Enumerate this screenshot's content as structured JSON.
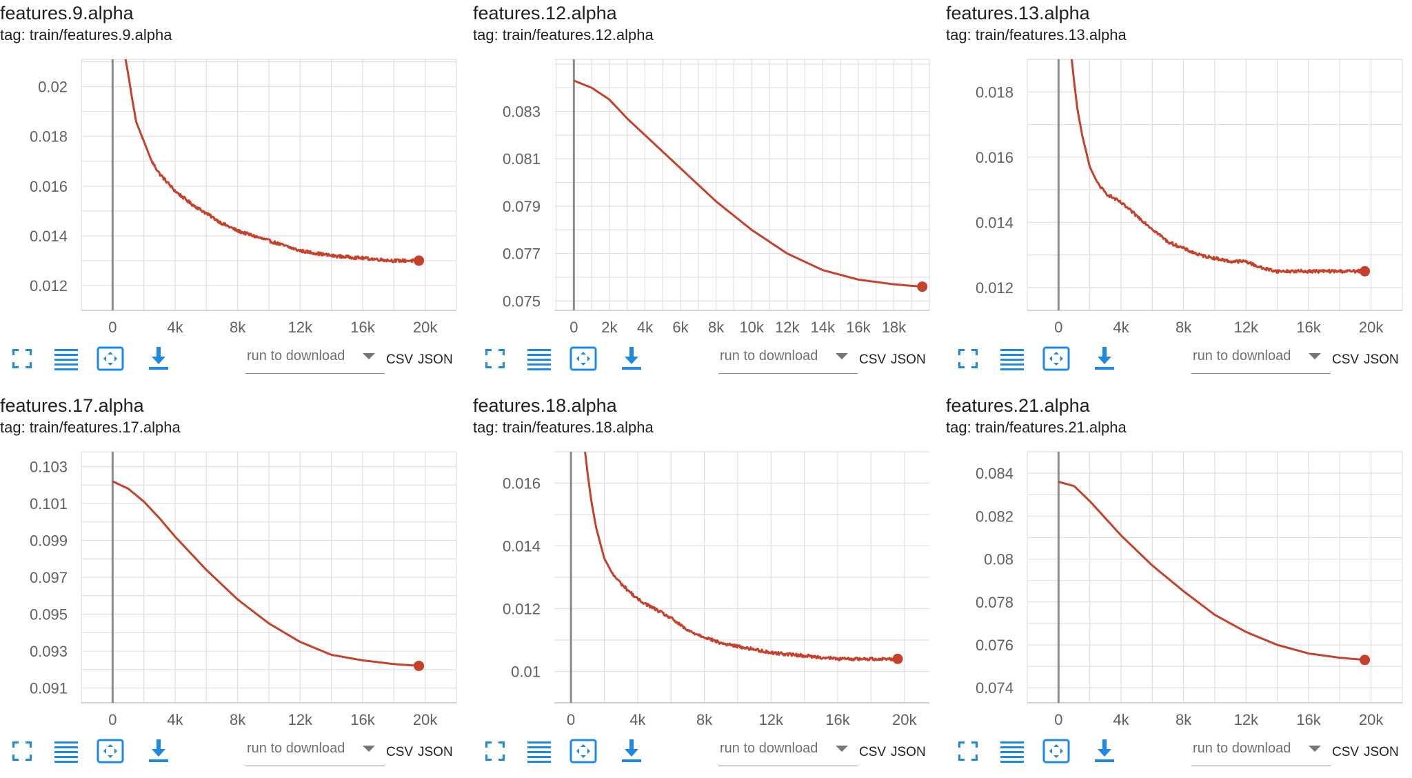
{
  "toolbar": {
    "run_placeholder": "run to download",
    "csv_label": "CSV",
    "json_label": "JSON"
  },
  "colors": {
    "line": "#c5412b",
    "grid": "#e0e0e0",
    "axis": "#8c8c8c",
    "icon": "#1e88e5"
  },
  "chart_data": [
    {
      "type": "line",
      "title": "features.9.alpha",
      "tag": "tag: train/features.9.alpha",
      "shape": "noisy-decay",
      "xlim": [
        -2000,
        22000
      ],
      "ylim": [
        0.011,
        0.0211
      ],
      "xticks": [
        0,
        4000,
        8000,
        12000,
        16000,
        20000
      ],
      "xtick_labels": [
        "0",
        "4k",
        "8k",
        "12k",
        "16k",
        "20k"
      ],
      "yticks": [
        0.012,
        0.014,
        0.016,
        0.018,
        0.02
      ],
      "ytick_labels": [
        "0.012",
        "0.014",
        "0.016",
        "0.018",
        "0.02"
      ],
      "series": [
        {
          "name": "train",
          "x": [
            800,
            1000,
            1200,
            1500,
            2000,
            2500,
            3000,
            4000,
            5000,
            6000,
            7000,
            8000,
            9000,
            10000,
            12000,
            14000,
            16000,
            18000,
            19600
          ],
          "y": [
            0.0212,
            0.0205,
            0.0197,
            0.0186,
            0.0178,
            0.017,
            0.0165,
            0.0158,
            0.0153,
            0.0149,
            0.0145,
            0.0142,
            0.014,
            0.0138,
            0.0134,
            0.0132,
            0.0131,
            0.013,
            0.013
          ]
        }
      ],
      "end_value": 0.013
    },
    {
      "type": "line",
      "title": "features.12.alpha",
      "tag": "tag: train/features.12.alpha",
      "shape": "smooth",
      "xlim": [
        -1100,
        20000
      ],
      "ylim": [
        0.0746,
        0.0852
      ],
      "xticks": [
        0,
        2000,
        4000,
        6000,
        8000,
        10000,
        12000,
        14000,
        16000,
        18000
      ],
      "xtick_labels": [
        "0",
        "2k",
        "4k",
        "6k",
        "8k",
        "10k",
        "12k",
        "14k",
        "16k",
        "18k"
      ],
      "yticks": [
        0.075,
        0.077,
        0.079,
        0.081,
        0.083
      ],
      "ytick_labels": [
        "0.075",
        "0.077",
        "0.079",
        "0.081",
        "0.083"
      ],
      "series": [
        {
          "name": "train",
          "x": [
            0,
            1000,
            2000,
            3000,
            4000,
            5000,
            6000,
            8000,
            10000,
            12000,
            14000,
            16000,
            18000,
            19600
          ],
          "y": [
            0.0843,
            0.084,
            0.0835,
            0.0827,
            0.082,
            0.0813,
            0.0806,
            0.0792,
            0.078,
            0.077,
            0.0763,
            0.0759,
            0.0757,
            0.0756
          ]
        }
      ],
      "end_value": 0.0756
    },
    {
      "type": "line",
      "title": "features.13.alpha",
      "tag": "tag: train/features.13.alpha",
      "shape": "noisy-decay",
      "xlim": [
        -2000,
        22000
      ],
      "ylim": [
        0.0113,
        0.019
      ],
      "xticks": [
        0,
        4000,
        8000,
        12000,
        16000,
        20000
      ],
      "xtick_labels": [
        "0",
        "4k",
        "8k",
        "12k",
        "16k",
        "20k"
      ],
      "yticks": [
        0.012,
        0.014,
        0.016,
        0.018
      ],
      "ytick_labels": [
        "0.012",
        "0.014",
        "0.016",
        "0.018"
      ],
      "series": [
        {
          "name": "train",
          "x": [
            800,
            1000,
            1200,
            1500,
            2000,
            2500,
            3000,
            4000,
            5000,
            6000,
            7000,
            8000,
            9000,
            10000,
            11000,
            12000,
            13000,
            14000,
            16000,
            18000,
            19600
          ],
          "y": [
            0.0192,
            0.0183,
            0.0175,
            0.0167,
            0.0157,
            0.0152,
            0.0149,
            0.0146,
            0.0142,
            0.0138,
            0.0134,
            0.0132,
            0.013,
            0.0129,
            0.0128,
            0.0128,
            0.0126,
            0.0125,
            0.0125,
            0.0125,
            0.0125
          ]
        }
      ],
      "end_value": 0.0125
    },
    {
      "type": "line",
      "title": "features.17.alpha",
      "tag": "tag: train/features.17.alpha",
      "shape": "smooth",
      "xlim": [
        -2000,
        22000
      ],
      "ylim": [
        0.0902,
        0.1038
      ],
      "xticks": [
        0,
        4000,
        8000,
        12000,
        16000,
        20000
      ],
      "xtick_labels": [
        "0",
        "4k",
        "8k",
        "12k",
        "16k",
        "20k"
      ],
      "yticks": [
        0.091,
        0.093,
        0.095,
        0.097,
        0.099,
        0.101,
        0.103
      ],
      "ytick_labels": [
        "0.091",
        "0.093",
        "0.095",
        "0.097",
        "0.099",
        "0.101",
        "0.103"
      ],
      "series": [
        {
          "name": "train",
          "x": [
            0,
            1000,
            2000,
            3000,
            4000,
            6000,
            8000,
            10000,
            12000,
            14000,
            16000,
            18000,
            19600
          ],
          "y": [
            0.1022,
            0.1018,
            0.1011,
            0.1002,
            0.0992,
            0.0974,
            0.0958,
            0.0945,
            0.0935,
            0.0928,
            0.0925,
            0.0923,
            0.0922
          ]
        }
      ],
      "end_value": 0.0922
    },
    {
      "type": "line",
      "title": "features.18.alpha",
      "tag": "tag: train/features.18.alpha",
      "shape": "noisy-decay",
      "xlim": [
        -1000,
        21500
      ],
      "ylim": [
        0.009,
        0.017
      ],
      "xticks": [
        0,
        4000,
        8000,
        12000,
        16000,
        20000
      ],
      "xtick_labels": [
        "0",
        "4k",
        "8k",
        "12k",
        "16k",
        "20k"
      ],
      "yticks": [
        0.01,
        0.012,
        0.014,
        0.016
      ],
      "ytick_labels": [
        "0.01",
        "0.012",
        "0.014",
        "0.016"
      ],
      "series": [
        {
          "name": "train",
          "x": [
            800,
            1000,
            1200,
            1500,
            2000,
            2500,
            3000,
            4000,
            5000,
            6000,
            7000,
            8000,
            9000,
            10000,
            12000,
            14000,
            16000,
            18000,
            19600
          ],
          "y": [
            0.0172,
            0.0163,
            0.0155,
            0.0146,
            0.0136,
            0.0131,
            0.0128,
            0.0123,
            0.012,
            0.0117,
            0.0113,
            0.0111,
            0.0109,
            0.0108,
            0.0106,
            0.0105,
            0.0104,
            0.0104,
            0.0104
          ]
        }
      ],
      "end_value": 0.0104
    },
    {
      "type": "line",
      "title": "features.21.alpha",
      "tag": "tag: train/features.21.alpha",
      "shape": "smooth",
      "xlim": [
        -2000,
        22000
      ],
      "ylim": [
        0.0733,
        0.085
      ],
      "xticks": [
        0,
        4000,
        8000,
        12000,
        16000,
        20000
      ],
      "xtick_labels": [
        "0",
        "4k",
        "8k",
        "12k",
        "16k",
        "20k"
      ],
      "yticks": [
        0.074,
        0.076,
        0.078,
        0.08,
        0.082,
        0.084
      ],
      "ytick_labels": [
        "0.074",
        "0.076",
        "0.078",
        "0.08",
        "0.082",
        "0.084"
      ],
      "series": [
        {
          "name": "train",
          "x": [
            0,
            1000,
            2000,
            3000,
            4000,
            6000,
            8000,
            10000,
            12000,
            14000,
            16000,
            18000,
            19600
          ],
          "y": [
            0.0836,
            0.0834,
            0.0827,
            0.0819,
            0.0811,
            0.0797,
            0.0785,
            0.0774,
            0.0766,
            0.076,
            0.0756,
            0.0754,
            0.0753
          ]
        }
      ],
      "end_value": 0.0753
    }
  ]
}
